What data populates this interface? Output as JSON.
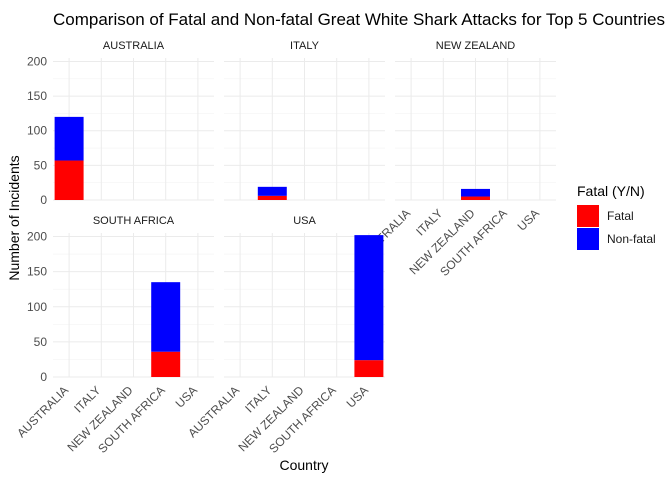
{
  "chart_data": {
    "type": "bar",
    "stacked": true,
    "faceted": true,
    "title": "Comparison of Fatal and Non-fatal Great White Shark Attacks for Top 5 Countries",
    "xlabel": "Country",
    "ylabel": "Number of Incidents",
    "ylim": [
      0,
      205
    ],
    "yticks": [
      0,
      50,
      100,
      150,
      200
    ],
    "grid": true,
    "categories": [
      "AUSTRALIA",
      "ITALY",
      "NEW ZEALAND",
      "SOUTH AFRICA",
      "USA"
    ],
    "legend": {
      "title": "Fatal (Y/N)",
      "position": "right",
      "entries": [
        {
          "label": "Fatal",
          "color": "#ff0000"
        },
        {
          "label": "Non-fatal",
          "color": "#0000ff"
        }
      ]
    },
    "facets": [
      {
        "name": "AUSTRALIA",
        "country": "AUSTRALIA",
        "fatal": 57,
        "nonfatal": 63
      },
      {
        "name": "ITALY",
        "country": "ITALY",
        "fatal": 6,
        "nonfatal": 13
      },
      {
        "name": "NEW ZEALAND",
        "country": "NEW ZEALAND",
        "fatal": 5,
        "nonfatal": 11
      },
      {
        "name": "SOUTH AFRICA",
        "country": "SOUTH AFRICA",
        "fatal": 36,
        "nonfatal": 99
      },
      {
        "name": "USA",
        "country": "USA",
        "fatal": 24,
        "nonfatal": 178
      }
    ]
  }
}
